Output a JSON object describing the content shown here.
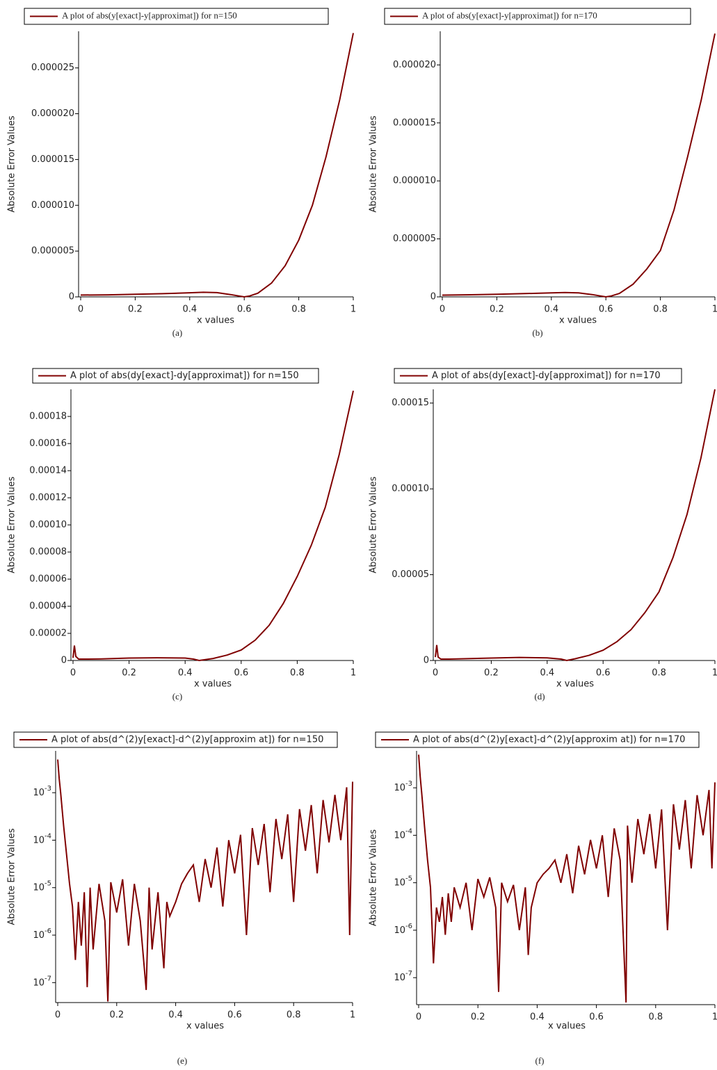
{
  "chart_data": [
    {
      "type": "line",
      "xlabel": "x values",
      "ylabel": "Absolute Error Values",
      "caption": "(a)",
      "x": [
        0,
        0.1,
        0.2,
        0.3,
        0.4,
        0.45,
        0.5,
        0.55,
        0.58,
        0.6,
        0.62,
        0.65,
        0.7,
        0.75,
        0.8,
        0.85,
        0.9,
        0.95,
        1
      ],
      "series": [
        {
          "name": "A plot of abs(y[exact]-y[approximat]) for n=150",
          "color": "#800000",
          "values": [
            2e-07,
            2.2e-07,
            2.8e-07,
            3.5e-07,
            4.5e-07,
            5e-07,
            4.6e-07,
            2.5e-07,
            1e-07,
            0,
            1e-07,
            4e-07,
            1.5e-06,
            3.4e-06,
            6.2e-06,
            1e-05,
            1.53e-05,
            2.15e-05,
            2.88e-05
          ]
        }
      ],
      "xlim": [
        0,
        1
      ],
      "xticks": [
        0,
        0.2,
        0.4,
        0.6,
        0.8,
        1
      ],
      "ylim": [
        0,
        2.9e-05
      ],
      "yticks": [
        0,
        {
          "value": 5e-06,
          "label": "0.000005"
        },
        {
          "value": 1e-05,
          "label": "0.000010"
        },
        {
          "value": 1.5e-05,
          "label": "0.000015"
        },
        {
          "value": 2e-05,
          "label": "0.000020"
        },
        {
          "value": 2.5e-05,
          "label": "0.000025"
        }
      ]
    },
    {
      "type": "line",
      "xlabel": "x values",
      "ylabel": "Absolute Error Values",
      "caption": "(b)",
      "x": [
        0,
        0.1,
        0.2,
        0.3,
        0.4,
        0.45,
        0.5,
        0.55,
        0.58,
        0.6,
        0.62,
        0.65,
        0.7,
        0.75,
        0.8,
        0.85,
        0.9,
        0.95,
        1
      ],
      "series": [
        {
          "name": "A plot of abs(y[exact]-y[approximat]) for n=170",
          "color": "#800000",
          "values": [
            1.5e-07,
            1.8e-07,
            2.2e-07,
            2.8e-07,
            3.5e-07,
            3.8e-07,
            3.5e-07,
            2e-07,
            8e-08,
            0,
            8e-08,
            3e-07,
            1.1e-06,
            2.4e-06,
            4e-06,
            7.5e-06,
            1.21e-05,
            1.7e-05,
            2.27e-05
          ]
        }
      ],
      "xlim": [
        0,
        1
      ],
      "xticks": [
        0,
        0.2,
        0.4,
        0.6,
        0.8,
        1
      ],
      "ylim": [
        0,
        2.29e-05
      ],
      "yticks": [
        0,
        {
          "value": 5e-06,
          "label": "0.000005"
        },
        {
          "value": 1e-05,
          "label": "0.000010"
        },
        {
          "value": 1.5e-05,
          "label": "0.000015"
        },
        {
          "value": 2e-05,
          "label": "0.000020"
        }
      ]
    },
    {
      "type": "line",
      "xlabel": "x values",
      "ylabel": "Absolute Error Values",
      "caption": "(c)",
      "x": [
        0,
        0.005,
        0.01,
        0.02,
        0.05,
        0.1,
        0.2,
        0.3,
        0.4,
        0.43,
        0.45,
        0.5,
        0.55,
        0.6,
        0.65,
        0.7,
        0.75,
        0.8,
        0.85,
        0.9,
        0.95,
        1
      ],
      "series": [
        {
          "name": "A plot of abs(dy[exact]-dy[approximat]) for n=150",
          "color": "#800000",
          "values": [
            2e-06,
            1.1e-05,
            3e-06,
            1e-06,
            1e-06,
            1.2e-06,
            1.8e-06,
            2e-06,
            1.8e-06,
            1e-06,
            0,
            1.5e-06,
            4e-06,
            7.7e-06,
            1.5e-05,
            2.6e-05,
            4.2e-05,
            6.2e-05,
            8.5e-05,
            0.000113,
            0.000152,
            0.000199
          ]
        }
      ],
      "xlim": [
        0,
        1
      ],
      "xticks": [
        0,
        0.2,
        0.4,
        0.6,
        0.8,
        1
      ],
      "ylim": [
        0,
        0.0002
      ],
      "yticks": [
        0,
        {
          "value": 2e-05,
          "label": "0.00002"
        },
        {
          "value": 4e-05,
          "label": "0.00004"
        },
        {
          "value": 6e-05,
          "label": "0.00006"
        },
        {
          "value": 8e-05,
          "label": "0.00008"
        },
        {
          "value": 0.0001,
          "label": "0.00010"
        },
        {
          "value": 0.00012,
          "label": "0.00012"
        },
        {
          "value": 0.00014,
          "label": "0.00014"
        },
        {
          "value": 0.00016,
          "label": "0.00016"
        },
        {
          "value": 0.00018,
          "label": "0.00018"
        }
      ]
    },
    {
      "type": "line",
      "xlabel": "x values",
      "ylabel": "Absolute Error Values",
      "caption": "(d)",
      "x": [
        0,
        0.005,
        0.01,
        0.02,
        0.05,
        0.1,
        0.2,
        0.3,
        0.4,
        0.45,
        0.47,
        0.5,
        0.55,
        0.6,
        0.65,
        0.7,
        0.75,
        0.8,
        0.85,
        0.9,
        0.95,
        1
      ],
      "series": [
        {
          "name": "A plot of abs(dy[exact]-dy[approximat]) for n=170",
          "color": "#800000",
          "values": [
            2e-06,
            9e-06,
            2e-06,
            8e-07,
            8e-07,
            1e-06,
            1.4e-06,
            1.8e-06,
            1.5e-06,
            8e-07,
            0,
            1e-06,
            3e-06,
            6e-06,
            1.1e-05,
            1.8e-05,
            2.8e-05,
            4e-05,
            6e-05,
            8.5e-05,
            0.000118,
            0.000158
          ]
        }
      ],
      "xlim": [
        0,
        1
      ],
      "xticks": [
        0,
        0.2,
        0.4,
        0.6,
        0.8,
        1
      ],
      "ylim": [
        0,
        0.000158
      ],
      "yticks": [
        0,
        {
          "value": 5e-05,
          "label": "0.00005"
        },
        {
          "value": 0.0001,
          "label": "0.00010"
        },
        {
          "value": 0.00015,
          "label": "0.00015"
        }
      ]
    },
    {
      "type": "line",
      "xlabel": "x values",
      "ylabel": "Absolute Error Values",
      "caption": "(e)",
      "yscale": "log",
      "x": [
        0,
        0.005,
        0.01,
        0.02,
        0.03,
        0.04,
        0.05,
        0.06,
        0.07,
        0.08,
        0.09,
        0.1,
        0.11,
        0.12,
        0.14,
        0.16,
        0.17,
        0.18,
        0.2,
        0.22,
        0.24,
        0.26,
        0.28,
        0.3,
        0.31,
        0.32,
        0.34,
        0.36,
        0.37,
        0.38,
        0.4,
        0.42,
        0.44,
        0.46,
        0.48,
        0.5,
        0.52,
        0.54,
        0.56,
        0.58,
        0.6,
        0.62,
        0.64,
        0.66,
        0.68,
        0.7,
        0.72,
        0.74,
        0.76,
        0.78,
        0.8,
        0.82,
        0.84,
        0.86,
        0.88,
        0.9,
        0.92,
        0.94,
        0.96,
        0.98,
        0.99,
        1
      ],
      "series": [
        {
          "name": "A plot of abs(d^(2)y[exact]-d^(2)y[approxim at]) for n=150",
          "color": "#800000",
          "values": [
            0.005,
            0.002,
            0.001,
            0.0002,
            5e-05,
            1.2e-05,
            4e-06,
            3e-07,
            5e-06,
            6e-07,
            8e-06,
            8e-08,
            1e-05,
            5e-07,
            1.2e-05,
            2e-06,
            4e-08,
            1.3e-05,
            3e-06,
            1.5e-05,
            6e-07,
            1.2e-05,
            2e-06,
            7e-08,
            1e-05,
            5e-07,
            8e-06,
            2e-07,
            5e-06,
            2.5e-06,
            5e-06,
            1.2e-05,
            2e-05,
            3e-05,
            5e-06,
            4e-05,
            1e-05,
            7e-05,
            4e-06,
            0.0001,
            2e-05,
            0.00013,
            1e-06,
            0.00018,
            3e-05,
            0.00022,
            8e-06,
            0.00028,
            4e-05,
            0.00035,
            5e-06,
            0.00045,
            6e-05,
            0.00055,
            2e-05,
            0.0007,
            9e-05,
            0.0009,
            0.0001,
            0.0013,
            1e-06,
            0.0017
          ]
        }
      ],
      "xlim": [
        0,
        1
      ],
      "xticks": [
        0,
        0.2,
        0.4,
        0.6,
        0.8,
        1
      ],
      "ylim": [
        3.8e-08,
        0.0076
      ],
      "yticks": [
        {
          "value": 1e-07,
          "label": "10",
          "exponent": "-7"
        },
        {
          "value": 1e-06,
          "label": "10",
          "exponent": "-6"
        },
        {
          "value": 1e-05,
          "label": "10",
          "exponent": "-5"
        },
        {
          "value": 0.0001,
          "label": "10",
          "exponent": "-4"
        },
        {
          "value": 0.001,
          "label": "10",
          "exponent": "-3"
        }
      ]
    },
    {
      "type": "line",
      "xlabel": "x values",
      "ylabel": "Absolute Error Values",
      "caption": "(f)",
      "yscale": "log",
      "x": [
        0,
        0.005,
        0.01,
        0.02,
        0.03,
        0.04,
        0.05,
        0.06,
        0.07,
        0.08,
        0.09,
        0.1,
        0.11,
        0.12,
        0.14,
        0.16,
        0.18,
        0.2,
        0.22,
        0.24,
        0.26,
        0.27,
        0.28,
        0.3,
        0.32,
        0.34,
        0.36,
        0.37,
        0.38,
        0.4,
        0.42,
        0.44,
        0.46,
        0.48,
        0.5,
        0.52,
        0.54,
        0.56,
        0.58,
        0.6,
        0.62,
        0.64,
        0.66,
        0.68,
        0.7,
        0.705,
        0.72,
        0.74,
        0.76,
        0.78,
        0.8,
        0.82,
        0.84,
        0.86,
        0.88,
        0.9,
        0.92,
        0.94,
        0.96,
        0.98,
        0.99,
        1
      ],
      "series": [
        {
          "name": "A plot of abs(d^(2)y[exact]-d^(2)y[approxim at]) for n=170",
          "color": "#800000",
          "values": [
            0.005,
            0.0018,
            0.0008,
            0.00015,
            3e-05,
            8e-06,
            2e-07,
            3e-06,
            1.5e-06,
            5e-06,
            8e-07,
            6e-06,
            1.5e-06,
            8e-06,
            3e-06,
            1e-05,
            1e-06,
            1.2e-05,
            5e-06,
            1.3e-05,
            3e-06,
            5e-08,
            1e-05,
            4e-06,
            9e-06,
            1e-06,
            8e-06,
            3e-07,
            3e-06,
            1e-05,
            1.5e-05,
            2e-05,
            3e-05,
            1e-05,
            4e-05,
            6e-06,
            6e-05,
            1.5e-05,
            8e-05,
            2e-05,
            0.0001,
            5e-06,
            0.00014,
            3e-05,
            3e-08,
            0.00016,
            1e-05,
            0.00022,
            4e-05,
            0.00028,
            2e-05,
            0.00035,
            1e-06,
            0.00045,
            5e-05,
            0.00055,
            2e-05,
            0.0007,
            0.0001,
            0.0009,
            2e-05,
            0.0013
          ]
        }
      ],
      "xlim": [
        0,
        1
      ],
      "xticks": [
        0,
        0.2,
        0.4,
        0.6,
        0.8,
        1
      ],
      "ylim": [
        2.7e-08,
        0.006
      ],
      "yticks": [
        {
          "value": 1e-07,
          "label": "10",
          "exponent": "-7"
        },
        {
          "value": 1e-06,
          "label": "10",
          "exponent": "-6"
        },
        {
          "value": 1e-05,
          "label": "10",
          "exponent": "-5"
        },
        {
          "value": 0.0001,
          "label": "10",
          "exponent": "-4"
        },
        {
          "value": 0.001,
          "label": "10",
          "exponent": "-3"
        }
      ]
    }
  ]
}
